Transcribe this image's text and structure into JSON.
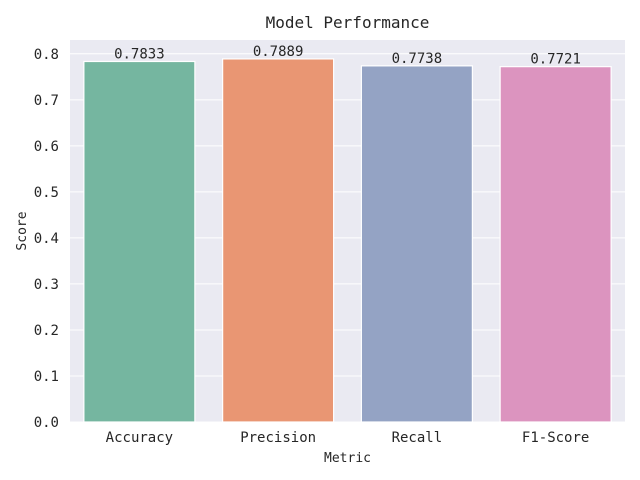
{
  "chart_data": {
    "type": "bar",
    "title": "Model Performance",
    "xlabel": "Metric",
    "ylabel": "Score",
    "categories": [
      "Accuracy",
      "Precision",
      "Recall",
      "F1-Score"
    ],
    "values": [
      0.7833,
      0.7889,
      0.7738,
      0.7721
    ],
    "data_labels": [
      "0.7833",
      "0.7889",
      "0.7738",
      "0.7721"
    ],
    "colors": [
      "#75b6a0",
      "#e99673",
      "#94a3c4",
      "#dc94bf"
    ],
    "ylim": [
      0,
      0.83
    ],
    "yticks": [
      0.0,
      0.1,
      0.2,
      0.3,
      0.4,
      0.5,
      0.6,
      0.7,
      0.8
    ],
    "ytick_labels": [
      "0.0",
      "0.1",
      "0.2",
      "0.3",
      "0.4",
      "0.5",
      "0.6",
      "0.7",
      "0.8"
    ],
    "grid": true,
    "background_color": "#eaeaf2"
  }
}
